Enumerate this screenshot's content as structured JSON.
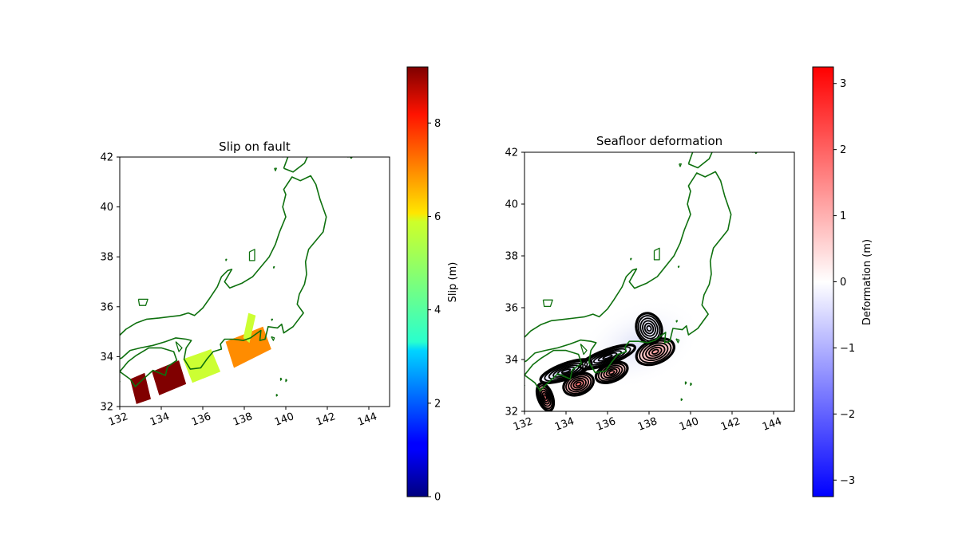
{
  "chart_data": [
    {
      "type": "heatmap",
      "title": "Slip on fault",
      "xlim": [
        132,
        145
      ],
      "ylim": [
        32,
        42
      ],
      "x_ticks": [
        "132",
        "134",
        "136",
        "138",
        "140",
        "142",
        "144"
      ],
      "y_ticks": [
        "32",
        "34",
        "36",
        "38",
        "40",
        "42"
      ],
      "colorbar": {
        "label": "Slip (m)",
        "colormap": "jet",
        "range": [
          0,
          9.2
        ],
        "ticks": [
          "0",
          "2",
          "4",
          "6",
          "8"
        ]
      },
      "subfaults": [
        {
          "corners": [
            [
              132.5,
              33.1
            ],
            [
              133.2,
              33.35
            ],
            [
              133.5,
              32.3
            ],
            [
              132.8,
              32.1
            ]
          ],
          "slip": 9.2,
          "color": "#800000"
        },
        {
          "corners": [
            [
              133.55,
              33.4
            ],
            [
              134.85,
              33.85
            ],
            [
              135.2,
              32.9
            ],
            [
              133.9,
              32.45
            ]
          ],
          "slip": 9.2,
          "color": "#800000"
        },
        {
          "corners": [
            [
              135.05,
              33.9
            ],
            [
              136.4,
              34.3
            ],
            [
              136.85,
              33.4
            ],
            [
              135.5,
              32.95
            ]
          ],
          "slip": 5.6,
          "color": "#ccff33"
        },
        {
          "corners": [
            [
              137.1,
              34.6
            ],
            [
              138.9,
              35.2
            ],
            [
              139.3,
              34.3
            ],
            [
              137.5,
              33.55
            ]
          ],
          "slip": 7.1,
          "color": "#ff8c00"
        },
        {
          "corners": [
            [
              138.2,
              35.75
            ],
            [
              138.55,
              35.65
            ],
            [
              138.25,
              34.55
            ],
            [
              137.95,
              34.75
            ]
          ],
          "slip": 5.6,
          "color": "#ccff33"
        }
      ]
    },
    {
      "type": "heatmap",
      "title": "Seafloor deformation",
      "xlim": [
        132,
        145
      ],
      "ylim": [
        32,
        42
      ],
      "x_ticks": [
        "132",
        "134",
        "136",
        "138",
        "140",
        "142",
        "144"
      ],
      "y_ticks": [
        "32",
        "34",
        "36",
        "38",
        "40",
        "42"
      ],
      "colorbar": {
        "label": "Deformation (m)",
        "colormap": "bwr",
        "range": [
          -3.25,
          3.25
        ],
        "ticks": [
          "3",
          "2",
          "1",
          "0",
          "−1",
          "−2",
          "−3"
        ]
      },
      "uplift_zones": [
        {
          "center": [
            133.0,
            32.55
          ],
          "rx": 0.35,
          "ry": 0.55,
          "rot": -20,
          "value": 1.8
        },
        {
          "center": [
            134.6,
            33.05
          ],
          "rx": 0.75,
          "ry": 0.4,
          "rot": -22,
          "value": 1.8
        },
        {
          "center": [
            136.2,
            33.5
          ],
          "rx": 0.8,
          "ry": 0.35,
          "rot": -22,
          "value": 1.4
        },
        {
          "center": [
            138.3,
            34.3
          ],
          "rx": 0.95,
          "ry": 0.45,
          "rot": -22,
          "value": 1.2
        }
      ],
      "subsidence_zones": [
        {
          "center": [
            134.0,
            33.55
          ],
          "rx": 1.3,
          "ry": 0.3,
          "rot": -20,
          "value": -0.5
        },
        {
          "center": [
            136.0,
            34.1
          ],
          "rx": 1.4,
          "ry": 0.28,
          "rot": -20,
          "value": -0.4
        },
        {
          "center": [
            138.0,
            35.2
          ],
          "rx": 0.6,
          "ry": 0.6,
          "rot": -20,
          "value": -0.3
        }
      ]
    }
  ],
  "colors": {
    "coastline": "#0e700e",
    "contour": "#000000"
  }
}
